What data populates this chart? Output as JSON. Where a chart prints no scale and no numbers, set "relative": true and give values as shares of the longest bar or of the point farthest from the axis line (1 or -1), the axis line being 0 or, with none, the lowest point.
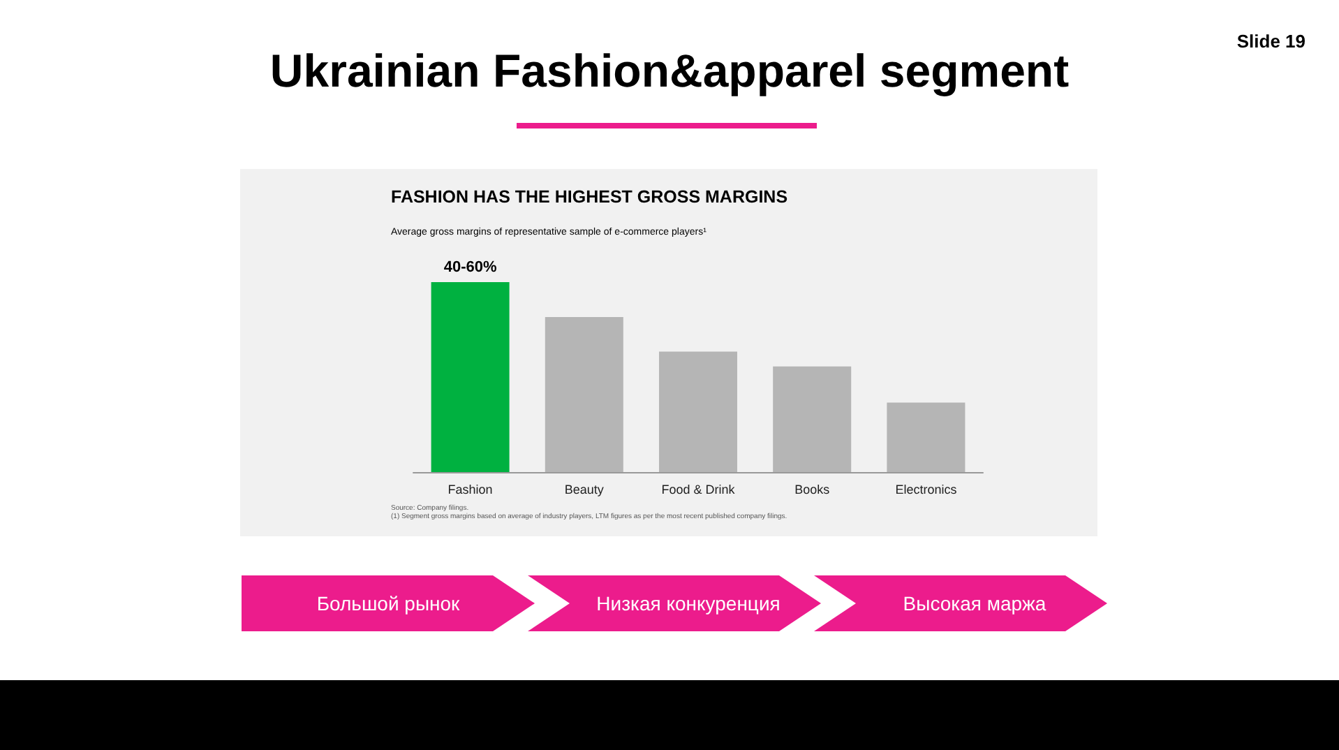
{
  "chart_data": {
    "type": "bar",
    "title": "Ukrainian Fashion&apparel segment",
    "subtitle": "FASHION HAS THE HIGHEST GROSS MARGINS",
    "annotations": [
      "Average gross margins of representative sample of e-commerce players¹",
      "Slide 19",
      "Большой рынок",
      "Низкая конкуренция",
      "Высокая маржа",
      "Source:  Company filings.",
      "(1)  Segment gross margins based on average of industry players, LTM figures as per the most recent published company filings.",
      {
        "text": "40-60%",
        "x": "Fashion",
        "y": 1
      }
    ],
    "categories": [
      "Fashion",
      "Beauty",
      "Food & Drink",
      "Books",
      "Electronics"
    ],
    "relative": true,
    "values": [
      1,
      0.816,
      0.634,
      0.556,
      0.366
    ],
    "colors": [
      "#00b140",
      "#b5b5b5",
      "#b5b5b5",
      "#b5b5b5",
      "#b5b5b5"
    ]
  }
}
